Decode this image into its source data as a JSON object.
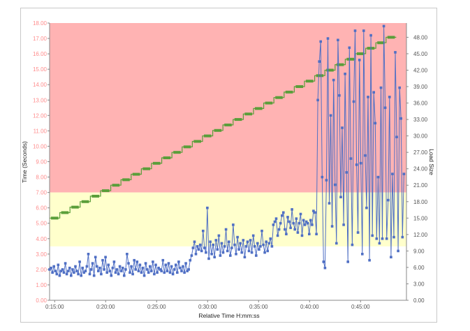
{
  "chart_data": {
    "type": "line",
    "xlabel": "Relative Time H:mm:ss",
    "ylabel": "Time (Seconds)",
    "y2label": "Load Size",
    "x_range": [
      "0:14:30",
      "0:49:30"
    ],
    "ylim": [
      0,
      18
    ],
    "y2lim": [
      0,
      50.6
    ],
    "x_ticks": [
      "0:15:00",
      "0:20:00",
      "0:25:00",
      "0:30:00",
      "0:35:00",
      "0:40:00",
      "0:45:00"
    ],
    "y_ticks": [
      "0.00",
      "1.00",
      "2.00",
      "3.00",
      "4.00",
      "5.00",
      "6.00",
      "7.00",
      "8.00",
      "9.00",
      "10.00",
      "11.00",
      "12.00",
      "13.00",
      "14.00",
      "15.00",
      "16.00",
      "17.00",
      "18.00"
    ],
    "y2_ticks": [
      "0.00",
      "3.00",
      "6.00",
      "9.00",
      "12.00",
      "15.00",
      "18.00",
      "21.00",
      "24.00",
      "27.00",
      "30.00",
      "33.00",
      "36.00",
      "39.00",
      "42.00",
      "45.00",
      "48.00"
    ],
    "bands": [
      {
        "from": 7.0,
        "to": 18.0,
        "color": "#ffb3b3"
      },
      {
        "from": 3.5,
        "to": 7.0,
        "color": "#ffffcc"
      }
    ],
    "load_steps": {
      "color": "#5a9e3a",
      "start": 15,
      "step": 1,
      "count": 34,
      "first_time": "0:14:30",
      "step_seconds": 60
    },
    "series": [
      {
        "color": "#4f6fc4",
        "x_start": "0:14:30",
        "x_end": "0:49:15",
        "values": [
          2.0,
          2.1,
          1.8,
          2.2,
          1.9,
          1.7,
          2.3,
          1.6,
          1.9,
          2.0,
          1.8,
          2.4,
          1.7,
          1.9,
          2.1,
          1.6,
          2.0,
          1.8,
          2.2,
          1.9,
          1.7,
          2.5,
          1.6,
          2.1,
          1.8,
          1.9,
          2.2,
          3.0,
          1.7,
          2.0,
          2.4,
          1.6,
          2.8,
          2.2,
          1.9,
          2.1,
          1.7,
          2.6,
          2.0,
          2.8,
          1.8,
          2.3,
          1.9,
          1.6,
          2.1,
          2.5,
          1.8,
          2.0,
          1.7,
          2.2,
          1.9,
          2.1,
          1.6,
          2.0,
          3.0,
          2.4,
          1.8,
          2.2,
          1.7,
          2.6,
          2.0,
          2.5,
          1.9,
          2.3,
          1.8,
          2.1,
          1.6,
          2.4,
          2.0,
          1.8,
          2.2,
          1.9,
          2.5,
          1.7,
          2.3,
          1.8,
          2.1,
          2.0,
          1.9,
          2.6,
          1.8,
          2.3,
          1.9,
          2.4,
          1.8,
          2.2,
          1.7,
          2.0,
          2.3,
          1.8,
          2.5,
          2.1,
          1.9,
          2.2,
          1.8,
          2.4,
          1.9,
          2.0,
          2.6,
          2.9,
          3.4,
          3.8,
          3.0,
          3.5,
          3.3,
          3.6,
          3.2,
          4.5,
          3.4,
          3.1,
          6.0,
          2.7,
          3.8,
          3.0,
          3.6,
          2.8,
          3.9,
          3.3,
          4.2,
          2.9,
          3.7,
          3.1,
          3.5,
          4.6,
          3.2,
          3.8,
          2.9,
          3.4,
          4.9,
          3.6,
          3.0,
          4.1,
          3.3,
          3.7,
          3.1,
          3.9,
          2.8,
          3.5,
          3.8,
          3.2,
          3.9,
          3.1,
          4.2,
          3.5,
          2.9,
          3.7,
          3.3,
          3.5,
          4.5,
          3.6,
          3.1,
          3.8,
          3.2,
          3.7,
          4.0,
          3.5,
          4.9,
          5.1,
          5.3,
          4.2,
          4.6,
          5.0,
          5.5,
          5.7,
          4.6,
          4.3,
          5.4,
          5.1,
          4.7,
          5.9,
          5.0,
          4.6,
          5.3,
          4.4,
          5.0,
          5.6,
          4.2,
          5.2,
          4.9,
          5.1,
          5.0,
          4.3,
          5.2,
          4.9,
          5.8,
          5.7,
          4.3,
          13.0,
          15.5,
          16.8,
          8.0,
          2.5,
          2.1,
          7.8,
          17.0,
          6.3,
          12.0,
          4.8,
          14.3,
          7.5,
          3.7,
          16.9,
          13.3,
          6.7,
          11.2,
          4.9,
          14.7,
          8.3,
          2.5,
          16.4,
          9.2,
          3.6,
          12.9,
          17.5,
          8.8,
          4.4,
          15.6,
          8.9,
          3.0,
          17.5,
          9.4,
          6.0,
          13.2,
          2.6,
          17.2,
          4.2,
          13.5,
          11.5,
          4.0,
          8.0,
          3.7,
          13.8,
          4.0,
          17.8,
          12.5,
          4.0,
          6.5,
          13.2,
          2.8,
          8.2,
          4.1,
          16.1,
          10.6,
          3.2,
          13.8,
          11.8,
          4.1,
          8.2
        ]
      }
    ]
  }
}
